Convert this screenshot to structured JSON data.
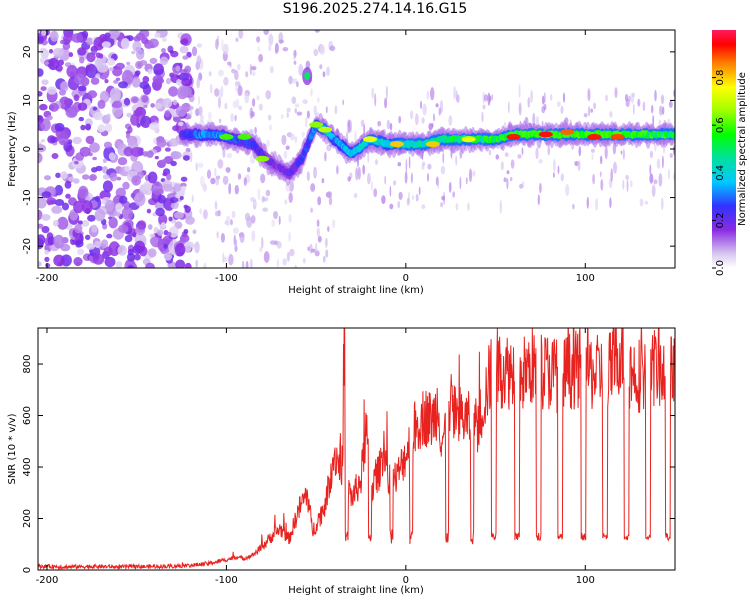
{
  "title": "S196.2025.274.14.16.G15",
  "colors": {
    "signal_line": "#e8231f",
    "weak_blob": "#c9b0ee",
    "mid_blob": "#7a3fd6"
  },
  "chart_data": [
    {
      "type": "heatmap",
      "name": "spectrogram",
      "xlabel": "Height of straight line (km)",
      "ylabel": "Frequency (Hz)",
      "xlim": [
        -205,
        150
      ],
      "ylim": [
        -24.5,
        24.5
      ],
      "xticks": [
        -200,
        -100,
        0,
        100
      ],
      "yticks": [
        -20,
        -10,
        0,
        10,
        20
      ],
      "colorbar": {
        "label": "Normalized spectral amplitude",
        "range": [
          0.0,
          1.0
        ],
        "ticks": [
          0.0,
          0.2,
          0.4,
          0.6,
          0.8
        ],
        "tick_labels": [
          "0.0",
          "0.2",
          "0.4",
          "0.6",
          "0.8"
        ]
      },
      "ridge": {
        "description_x": [
          -125,
          -115,
          -105,
          -95,
          -85,
          -78,
          -70,
          -65,
          -58,
          -50,
          -45,
          -40,
          -30,
          -20,
          -10,
          0,
          10,
          20,
          30,
          40,
          50,
          60,
          70,
          80,
          90,
          100,
          110,
          120,
          130,
          140,
          150
        ],
        "freq_hz": [
          3,
          3,
          3,
          2,
          1,
          -2,
          -4,
          -5,
          -2,
          5,
          4,
          2,
          -1,
          2,
          1,
          1,
          1,
          2,
          2,
          2,
          2,
          3,
          3,
          3,
          3,
          3,
          3,
          3,
          3,
          3,
          3
        ],
        "amplitude": [
          0.3,
          0.45,
          0.5,
          0.4,
          0.35,
          0.3,
          0.25,
          0.3,
          0.35,
          0.5,
          0.6,
          0.5,
          0.55,
          0.6,
          0.55,
          0.6,
          0.65,
          0.7,
          0.75,
          0.75,
          0.8,
          0.9,
          0.9,
          0.95,
          0.9,
          0.9,
          0.9,
          0.9,
          0.85,
          0.8,
          0.8
        ]
      },
      "isolated_spot": {
        "x": -55,
        "freq_hz": 15,
        "amplitude": 0.5
      }
    },
    {
      "type": "line",
      "name": "snr",
      "xlabel": "Height of straight line (km)",
      "ylabel": "SNR (10 * v/v)",
      "xlim": [
        -205,
        150
      ],
      "ylim": [
        0,
        940
      ],
      "xticks": [
        -200,
        -100,
        0,
        100
      ],
      "yticks": [
        0,
        200,
        400,
        600,
        800
      ],
      "series": [
        {
          "name": "SNR",
          "color": "#e8231f",
          "x": [
            -205,
            -190,
            -175,
            -160,
            -145,
            -130,
            -120,
            -110,
            -100,
            -95,
            -90,
            -85,
            -80,
            -75,
            -70,
            -65,
            -60,
            -55,
            -52,
            -50,
            -45,
            -40,
            -35,
            -35,
            -32,
            -30,
            -25,
            -22,
            -20,
            -15,
            -12,
            -10,
            -5,
            0,
            5,
            10,
            15,
            18,
            20,
            25,
            30,
            35,
            40,
            45,
            48,
            50,
            55,
            60,
            65,
            70,
            75,
            80,
            85,
            90,
            95,
            100,
            105,
            110,
            115,
            120,
            125,
            130,
            135,
            140,
            145,
            150
          ],
          "y": [
            15,
            12,
            14,
            12,
            13,
            15,
            18,
            25,
            40,
            50,
            45,
            60,
            90,
            130,
            160,
            120,
            230,
            300,
            150,
            180,
            250,
            450,
            400,
            880,
            320,
            280,
            350,
            560,
            300,
            380,
            490,
            350,
            360,
            450,
            550,
            600,
            580,
            650,
            500,
            640,
            600,
            580,
            560,
            700,
            780,
            790,
            780,
            770,
            760,
            790,
            780,
            770,
            760,
            770,
            780,
            790,
            760,
            770,
            780,
            860,
            770,
            760,
            780,
            790,
            770,
            760
          ]
        }
      ],
      "dropout_centers_km": [
        -33,
        -20,
        -8,
        3,
        23,
        37,
        49,
        62,
        74,
        86,
        99,
        111,
        123,
        135,
        146
      ],
      "dropout_level": 130
    }
  ]
}
